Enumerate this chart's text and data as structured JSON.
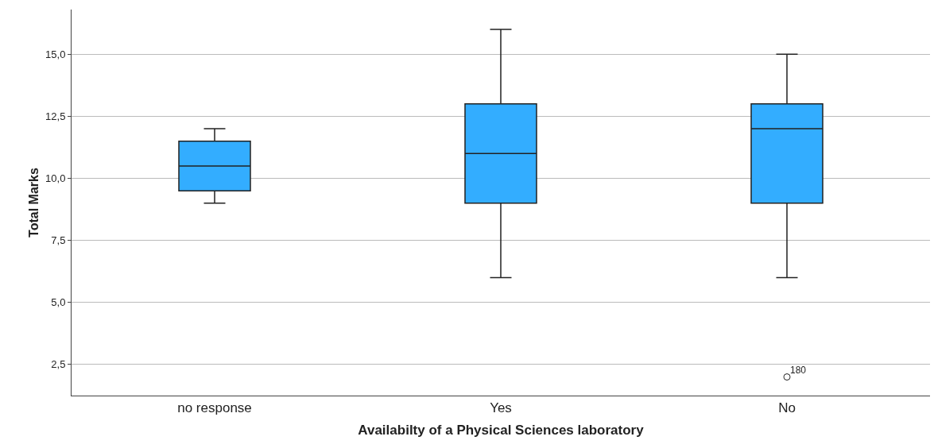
{
  "chart_data": {
    "type": "box",
    "xlabel": "Availabilty of a Physical Sciences laboratory",
    "ylabel": "Total Marks",
    "categories": [
      "no response",
      "Yes",
      "No"
    ],
    "color": "#33adff",
    "boxes": [
      {
        "low": 9,
        "q1": 9.5,
        "median": 10.5,
        "q3": 11.5,
        "high": 12
      },
      {
        "low": 6,
        "q1": 9,
        "median": 11,
        "q3": 13,
        "high": 16
      },
      {
        "low": 6,
        "q1": 9,
        "median": 12,
        "q3": 13,
        "high": 15,
        "outliers": [
          2
        ]
      }
    ],
    "annotations": [
      "180"
    ],
    "ylim": [
      1.25,
      16.8
    ],
    "yticks": [
      {
        "value": 2.5,
        "label": "2,5"
      },
      {
        "value": 5,
        "label": "5,0"
      },
      {
        "value": 7.5,
        "label": "7,5"
      },
      {
        "value": 10,
        "label": "10,0"
      },
      {
        "value": 12.5,
        "label": "12,5"
      },
      {
        "value": 15,
        "label": "15,0"
      }
    ],
    "grid": "y",
    "marker": "circle"
  }
}
